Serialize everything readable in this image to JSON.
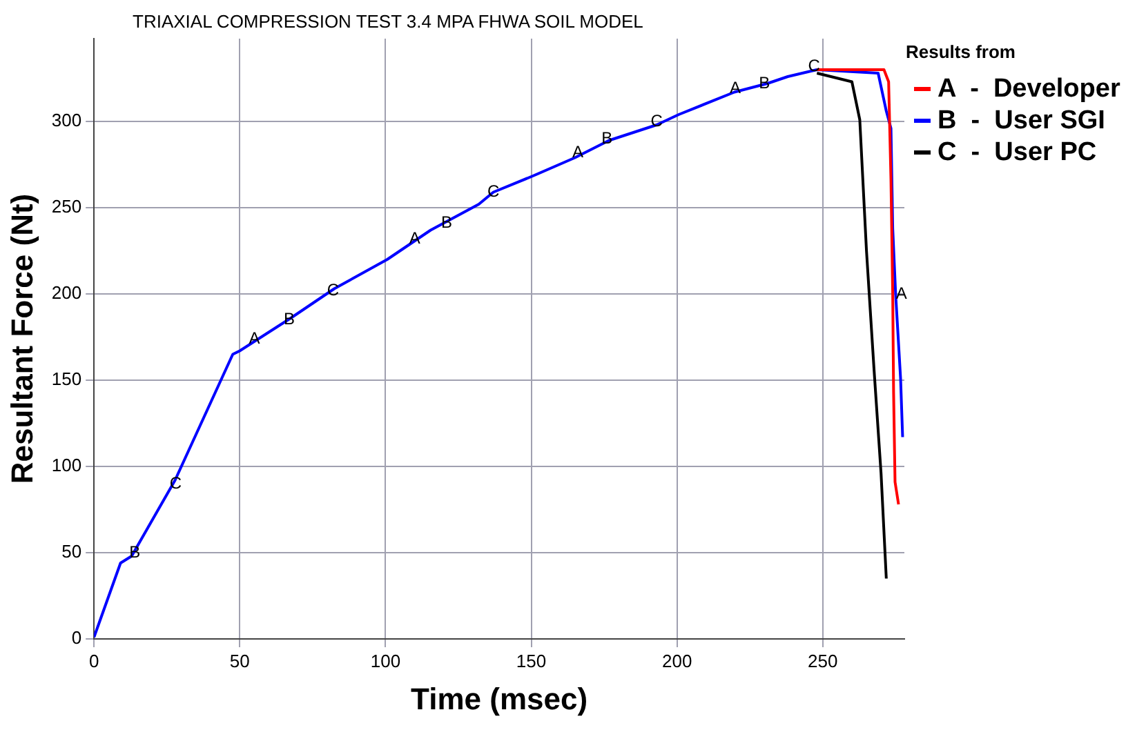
{
  "chart_data": {
    "type": "line",
    "title": "TRIAXIAL COMPRESSION TEST 3.4 MPA FHWA SOIL MODEL",
    "xlabel": "Time (msec)",
    "ylabel": "Resultant Force (Nt)",
    "legend_title": "Results from",
    "legend": "right",
    "grid": true,
    "marker": "none",
    "line_style": "solid",
    "xlim": [
      0,
      278
    ],
    "xticks": [
      0,
      50,
      100,
      150,
      200,
      250
    ],
    "ylim": [
      0,
      348
    ],
    "yticks": [
      0,
      50,
      100,
      150,
      200,
      250,
      300
    ],
    "series": [
      {
        "name": "A  -  Developer",
        "color": "#ff0000",
        "x": [
          248,
          271,
          272.6,
          273.4,
          274,
          274.3,
          274.8,
          276
        ],
        "values": [
          330,
          330,
          323,
          266,
          200,
          143,
          91,
          78
        ]
      },
      {
        "name": "B  -  User SGI",
        "color": "#0000ff",
        "x": [
          0,
          9.1,
          12.9,
          27.8,
          47.6,
          50,
          67.5,
          82.4,
          100.6,
          115.5,
          132,
          137,
          150,
          165,
          176.7,
          193,
          200.6,
          219.7,
          231,
          238,
          248,
          269,
          271.8,
          273.4,
          274,
          275,
          276.7,
          277.4
        ],
        "values": [
          1,
          44,
          48,
          92,
          165,
          167,
          186,
          203,
          220,
          237,
          252,
          259,
          268,
          279,
          289,
          298,
          304,
          317,
          322,
          326,
          330,
          328,
          306,
          296,
          238,
          200,
          151,
          117
        ]
      },
      {
        "name": "C  -  User PC",
        "color": "#000000",
        "x": [
          248,
          260,
          262.7,
          265,
          267.6,
          270,
          271.8
        ],
        "values": [
          328,
          323,
          301,
          225,
          156,
          96,
          35
        ]
      }
    ],
    "annotations": [
      {
        "text": "B",
        "x": 14,
        "y": 50
      },
      {
        "text": "C",
        "x": 28,
        "y": 90
      },
      {
        "text": "A",
        "x": 55,
        "y": 174
      },
      {
        "text": "B",
        "x": 67,
        "y": 185
      },
      {
        "text": "C",
        "x": 82,
        "y": 202
      },
      {
        "text": "A",
        "x": 110,
        "y": 232
      },
      {
        "text": "B",
        "x": 121,
        "y": 241
      },
      {
        "text": "C",
        "x": 137,
        "y": 259
      },
      {
        "text": "A",
        "x": 166,
        "y": 282
      },
      {
        "text": "B",
        "x": 176,
        "y": 290
      },
      {
        "text": "C",
        "x": 193,
        "y": 300
      },
      {
        "text": "A",
        "x": 220,
        "y": 319
      },
      {
        "text": "B",
        "x": 230,
        "y": 322
      },
      {
        "text": "C",
        "x": 247,
        "y": 332
      },
      {
        "text": "A",
        "x": 277,
        "y": 200
      }
    ]
  }
}
